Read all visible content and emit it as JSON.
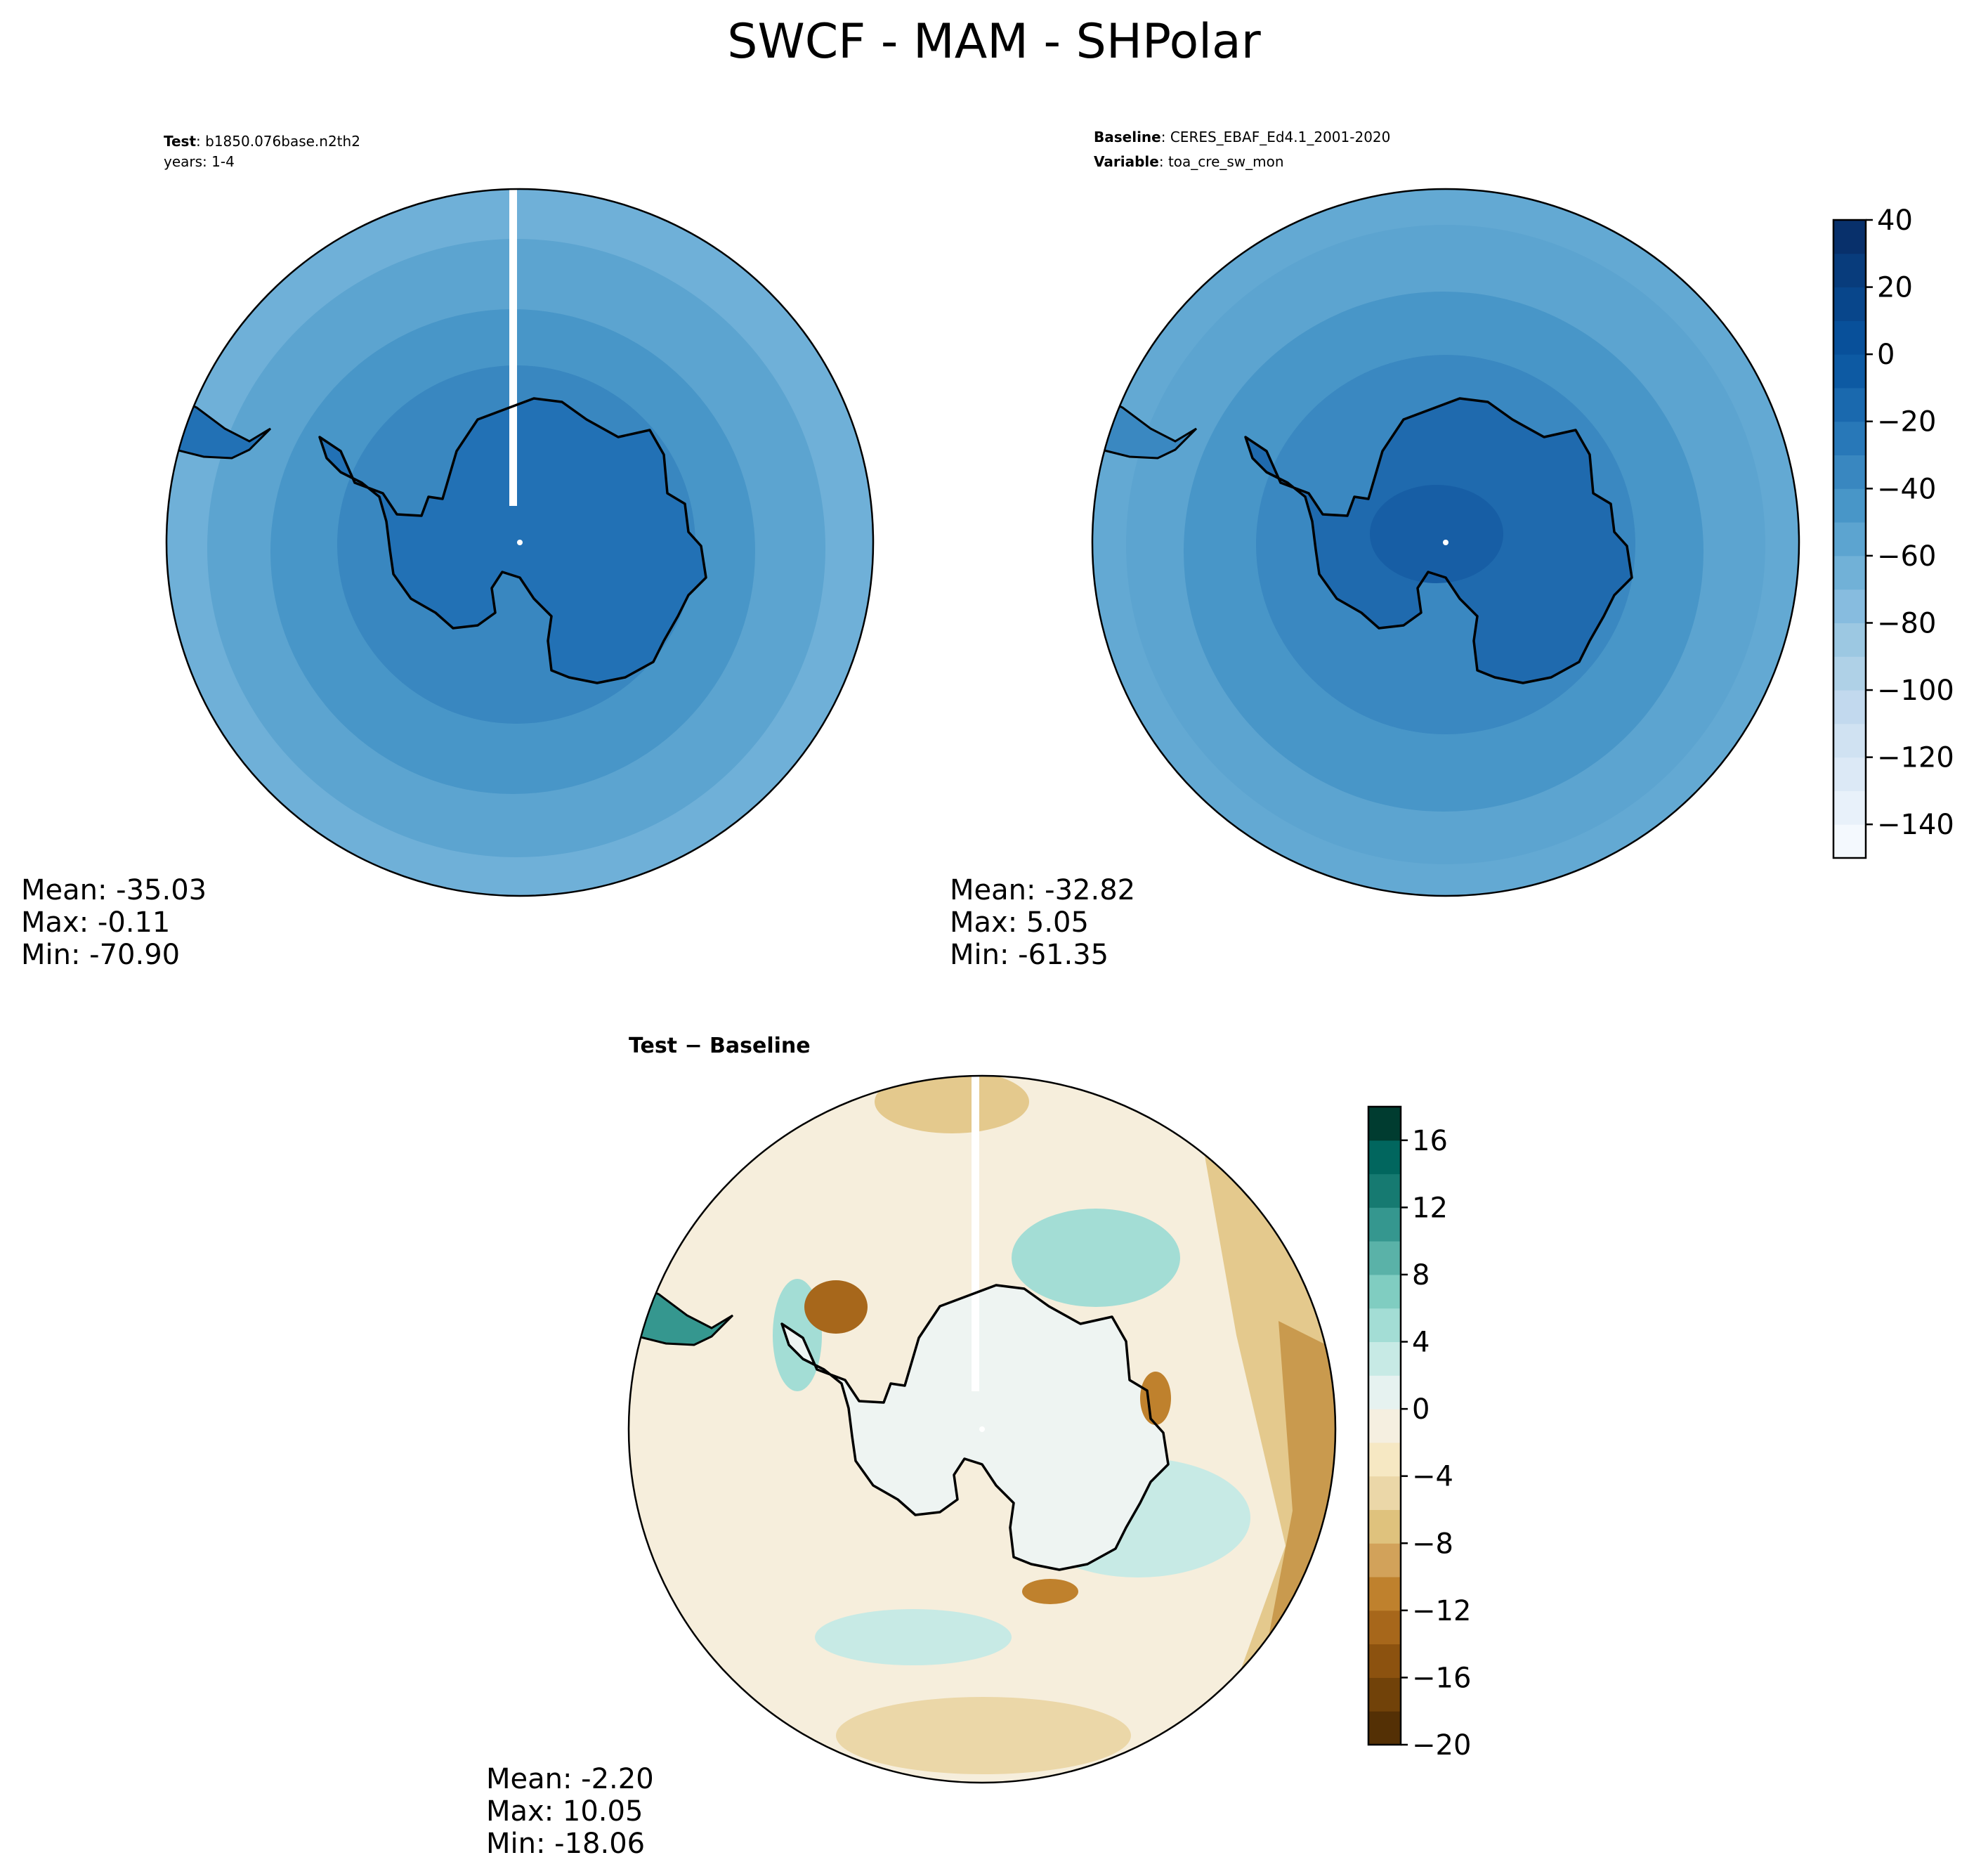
{
  "title": "SWCF - MAM - SHPolar",
  "panels": {
    "test": {
      "label_key": "Test",
      "label_sep": ": ",
      "label_value": "b1850.076base.n2th2",
      "years": "years: 1-4",
      "mean": "Mean: -35.03",
      "max": "Max: -0.11",
      "min": "Min: -70.90"
    },
    "baseline": {
      "label_key": "Baseline",
      "label_sep": ": ",
      "label_value": "CERES_EBAF_Ed4.1_2001-2020",
      "variable_key": "Variable",
      "variable_sep": ": ",
      "variable_value": "toa_cre_sw_mon",
      "mean": "Mean: -32.82",
      "max": "Max:  5.05",
      "min": "Min: -61.35"
    },
    "difference": {
      "title": "Test − Baseline",
      "mean": "Mean: -2.20",
      "max": "Max: 10.05",
      "min": "Min: -18.06"
    }
  },
  "colorbars": {
    "main": {
      "ticks": [
        "40",
        "20",
        "0",
        "−20",
        "−40",
        "−60",
        "−80",
        "−100",
        "−120",
        "−140"
      ],
      "levels": [
        -150,
        -140,
        -130,
        -120,
        -110,
        -100,
        -90,
        -80,
        -70,
        -60,
        -50,
        -40,
        -30,
        -20,
        -10,
        0,
        10,
        20,
        30,
        40
      ],
      "colors": [
        "#f4f9fe",
        "#e8f1fa",
        "#dce9f6",
        "#d0e2f2",
        "#c2d9ee",
        "#afd1e7",
        "#9cc8e2",
        "#87bcdf",
        "#71b1d7",
        "#5ca4d0",
        "#4896c8",
        "#3987c0",
        "#2878b8",
        "#1a69ae",
        "#0d5aa3",
        "#08509a",
        "#08468b",
        "#083c7c",
        "#08306b"
      ]
    },
    "diff": {
      "ticks": [
        "16",
        "12",
        "8",
        "4",
        "0",
        "−4",
        "−8",
        "−12",
        "−16",
        "−20"
      ],
      "levels": [
        -20,
        -18,
        -16,
        -14,
        -12,
        -10,
        -8,
        -6,
        -4,
        -2,
        0,
        2,
        4,
        6,
        8,
        10,
        12,
        14,
        16,
        18
      ],
      "colors": [
        "#543005",
        "#714209",
        "#8c520f",
        "#a7671b",
        "#bf812d",
        "#d2a25a",
        "#dfc27d",
        "#ebd7a8",
        "#f6e8c3",
        "#f5efe0",
        "#e6f2f0",
        "#c7eae5",
        "#a3ddd5",
        "#80cdc1",
        "#5ab2a8",
        "#35978f",
        "#167a71",
        "#01665e",
        "#003c30"
      ]
    }
  },
  "map_colors": {
    "test": {
      "outer": "#6fb0d8",
      "mid": "#5ca4d0",
      "inner": "#4896c8",
      "ring": "#3987c0",
      "ice": "#2271b5"
    },
    "baseline": {
      "outer": "#63a9d3",
      "mid": "#5ca4d0",
      "inner": "#4896c8",
      "ring": "#3a88c1",
      "ice": "#1f6aae",
      "core": "#175ea5"
    },
    "diff": {
      "ocean": "#f6eedc",
      "teal": "#a3ddd5",
      "tan": "#e4c98d",
      "brown": "#a7671b",
      "ice": "#eef4f2"
    }
  }
}
